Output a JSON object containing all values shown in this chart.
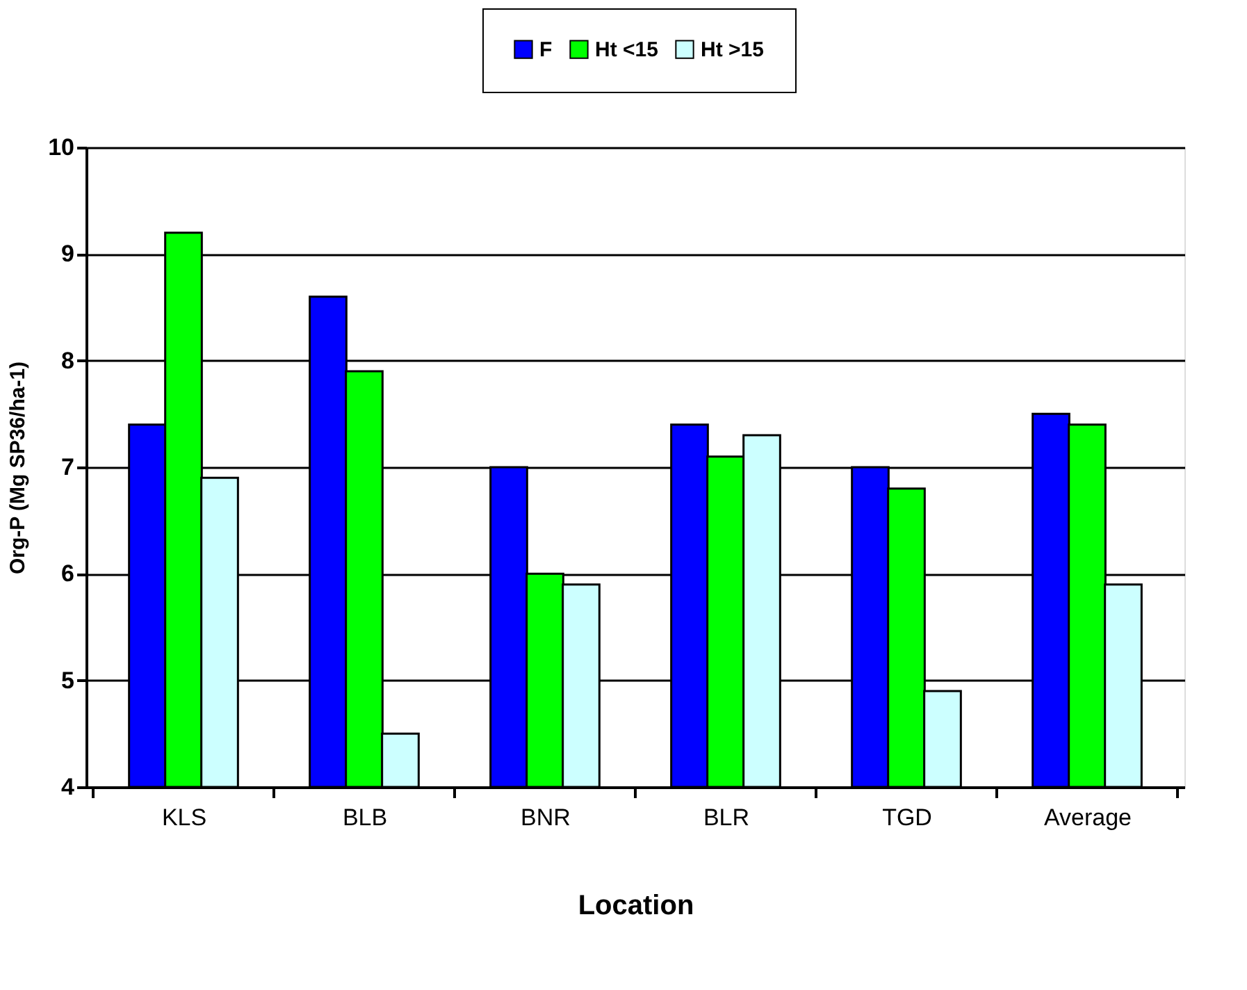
{
  "chart_data": {
    "type": "bar",
    "xlabel": "Location",
    "ylabel": "Org-P (Mg SP36/ha-1)",
    "categories": [
      "KLS",
      "BLB",
      "BNR",
      "BLR",
      "TGD",
      "Average"
    ],
    "series": [
      {
        "name": "F",
        "color": "#0000ff",
        "values": [
          7.4,
          8.6,
          7.0,
          7.4,
          7.0,
          7.5
        ]
      },
      {
        "name": "Ht <15",
        "color": "#00ff00",
        "values": [
          9.2,
          7.9,
          6.0,
          7.1,
          6.8,
          7.4
        ]
      },
      {
        "name": "Ht >15",
        "color": "#ccffff",
        "values": [
          6.9,
          4.5,
          5.9,
          7.3,
          4.9,
          5.9
        ]
      }
    ],
    "ylim": [
      4,
      10
    ],
    "yticks": [
      4,
      5,
      6,
      7,
      8,
      9,
      10
    ],
    "grid": "y",
    "legend": "top"
  }
}
